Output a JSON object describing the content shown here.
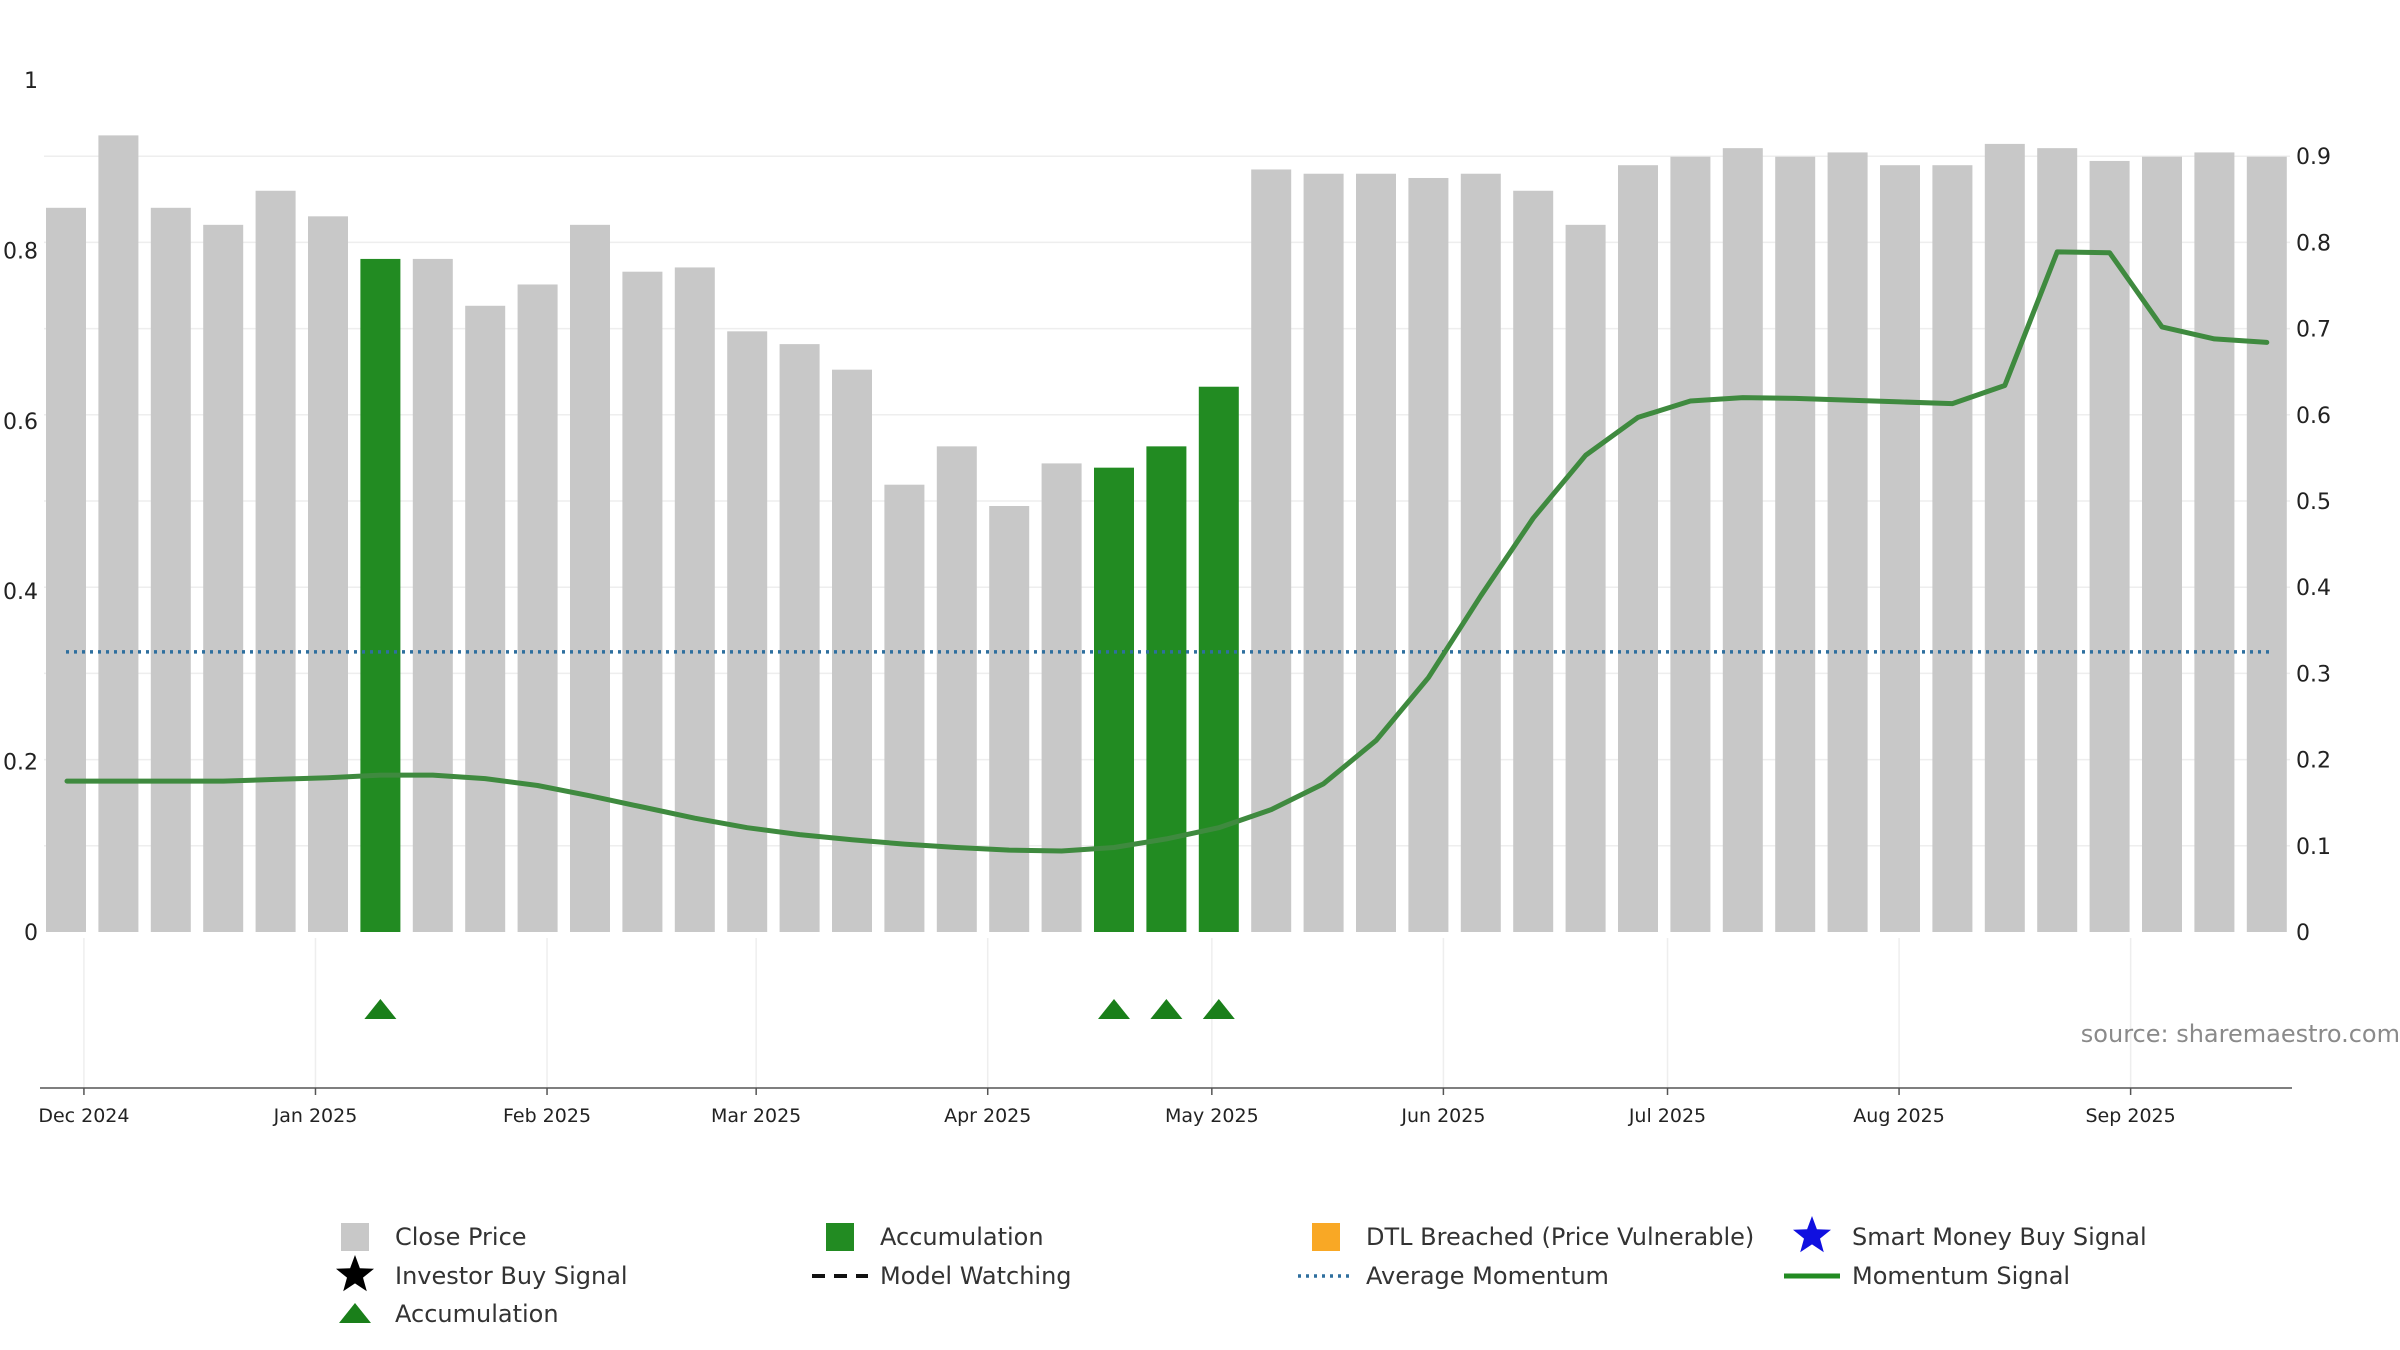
{
  "chart_data": {
    "type": "bar",
    "title": "",
    "source": "source: sharemaestro.com",
    "left_axis": {
      "min": 0,
      "max": 1,
      "ticks": [
        0,
        0.2,
        0.4,
        0.6,
        0.8,
        1
      ],
      "labels": [
        "0",
        "0.2",
        "0.4",
        "0.6",
        "0.8",
        "1"
      ]
    },
    "right_axis": {
      "min": 0,
      "max": 1,
      "ticks": [
        0,
        0.1,
        0.2,
        0.3,
        0.4,
        0.5,
        0.6,
        0.7,
        0.8,
        0.9
      ],
      "labels": [
        "0",
        "0.1",
        "0.2",
        "0.3",
        "0.4",
        "0.5",
        "0.6",
        "0.7",
        "0.8",
        "0.9"
      ]
    },
    "x_ticks": [
      {
        "label": "Dec 2024",
        "pos": 0.323
      },
      {
        "label": "Jan 2025",
        "pos": 4.742
      },
      {
        "label": "Feb 2025",
        "pos": 9.161
      },
      {
        "label": "Mar 2025",
        "pos": 13.152
      },
      {
        "label": "Apr 2025",
        "pos": 17.571
      },
      {
        "label": "May 2025",
        "pos": 21.848
      },
      {
        "label": "Jun 2025",
        "pos": 26.267
      },
      {
        "label": "Jul 2025",
        "pos": 30.544
      },
      {
        "label": "Aug 2025",
        "pos": 34.963
      },
      {
        "label": "Sep 2025",
        "pos": 39.382
      }
    ],
    "close_price": [
      0.85,
      0.935,
      0.85,
      0.83,
      0.87,
      0.84,
      0.79,
      0.79,
      0.735,
      0.76,
      0.83,
      0.775,
      0.78,
      0.705,
      0.69,
      0.66,
      0.525,
      0.57,
      0.5,
      0.55,
      0.545,
      0.57,
      0.64,
      0.895,
      0.89,
      0.89,
      0.885,
      0.89,
      0.87,
      0.83,
      0.9,
      0.91,
      0.92,
      0.91,
      0.915,
      0.9,
      0.9,
      0.925,
      0.92,
      0.905,
      0.91,
      0.915,
      0.91
    ],
    "accumulation_bars": [
      6,
      20,
      21,
      22
    ],
    "accumulation_markers": [
      6,
      20,
      21,
      22
    ],
    "momentum_signal": [
      0.175,
      0.175,
      0.175,
      0.175,
      0.177,
      0.179,
      0.182,
      0.182,
      0.178,
      0.17,
      0.158,
      0.145,
      0.132,
      0.121,
      0.113,
      0.107,
      0.102,
      0.098,
      0.095,
      0.094,
      0.098,
      0.108,
      0.121,
      0.142,
      0.172,
      0.222,
      0.295,
      0.39,
      0.48,
      0.553,
      0.597,
      0.616,
      0.62,
      0.619,
      0.617,
      0.615,
      0.613,
      0.634,
      0.789,
      0.788,
      0.702,
      0.688,
      0.684
    ],
    "average_momentum": 0.325,
    "colors": {
      "close_price": "#c8c8c8",
      "accumulation": "#228b22",
      "momentum": "#3f8a3f",
      "average_momentum": "#2e6f9e",
      "marker": "#1a7f1a",
      "dtl": "#f9a825",
      "smart_money": "#1010e0",
      "investor": "#000000"
    },
    "legend": [
      {
        "label": "Close Price",
        "symbol": "gray-square"
      },
      {
        "label": "Accumulation",
        "symbol": "green-square"
      },
      {
        "label": "DTL Breached (Price Vulnerable)",
        "symbol": "orange-square"
      },
      {
        "label": "Smart Money Buy Signal",
        "symbol": "blue-star"
      },
      {
        "label": "Investor Buy Signal",
        "symbol": "black-star"
      },
      {
        "label": "Model Watching",
        "symbol": "black-dash"
      },
      {
        "label": "Average Momentum",
        "symbol": "blue-dotted"
      },
      {
        "label": "Momentum Signal",
        "symbol": "green-line"
      },
      {
        "label": "Accumulation",
        "symbol": "green-triangle"
      }
    ]
  }
}
